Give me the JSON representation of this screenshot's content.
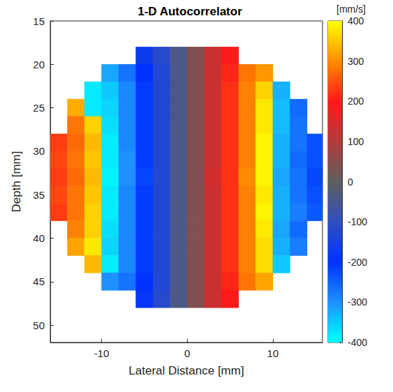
{
  "chart_data": {
    "type": "heatmap",
    "title": "1-D Autocorrelator",
    "x_label": "Lateral Distance [mm]",
    "y_label": "Depth [mm]",
    "xlim": [
      -16,
      15.8
    ],
    "ylim": [
      15,
      52
    ],
    "xticks": [
      -10,
      0,
      10
    ],
    "yticks": [
      15,
      20,
      25,
      30,
      35,
      40,
      45,
      50
    ],
    "cells": {
      "x": [
        -15,
        -13,
        -11,
        -9,
        -7,
        -5,
        -3,
        -1,
        1,
        3,
        5,
        7,
        9,
        11,
        13,
        15
      ],
      "y": [
        19,
        21,
        23,
        25,
        27,
        29,
        31,
        33,
        35,
        37,
        39,
        41,
        43,
        45,
        47
      ],
      "values": [
        [
          null,
          null,
          null,
          null,
          null,
          -170,
          -120,
          -40,
          40,
          130,
          200,
          null,
          null,
          null,
          null,
          null
        ],
        [
          null,
          null,
          null,
          -320,
          -270,
          -200,
          -130,
          -40,
          40,
          130,
          210,
          280,
          310,
          null,
          null,
          null
        ],
        [
          null,
          null,
          -380,
          -350,
          -290,
          -210,
          -130,
          -40,
          40,
          130,
          220,
          290,
          360,
          -330,
          null,
          null
        ],
        [
          null,
          330,
          -380,
          -360,
          -290,
          -210,
          -130,
          -40,
          40,
          130,
          220,
          290,
          380,
          -340,
          -260,
          null
        ],
        [
          null,
          280,
          360,
          -370,
          -290,
          -210,
          -130,
          -40,
          40,
          130,
          220,
          290,
          380,
          -340,
          -270,
          null
        ],
        [
          230,
          270,
          340,
          -380,
          -290,
          -210,
          -130,
          -40,
          40,
          130,
          220,
          290,
          390,
          -330,
          -270,
          -230
        ],
        [
          240,
          280,
          350,
          -380,
          -300,
          -210,
          -130,
          -40,
          40,
          130,
          220,
          290,
          390,
          -330,
          -260,
          -230
        ],
        [
          230,
          270,
          340,
          -390,
          -300,
          -220,
          -130,
          -40,
          40,
          140,
          220,
          300,
          390,
          -320,
          -270,
          -220
        ],
        [
          240,
          280,
          350,
          -380,
          -290,
          -210,
          -130,
          -40,
          40,
          130,
          220,
          290,
          380,
          -330,
          -270,
          -230
        ],
        [
          230,
          280,
          360,
          -380,
          -290,
          -210,
          -130,
          -40,
          40,
          130,
          220,
          290,
          390,
          -330,
          -280,
          -240
        ],
        [
          null,
          290,
          360,
          -370,
          -290,
          -210,
          -130,
          -40,
          40,
          130,
          220,
          290,
          380,
          -320,
          -260,
          null
        ],
        [
          null,
          320,
          380,
          -360,
          -290,
          -210,
          -130,
          -40,
          40,
          130,
          220,
          290,
          370,
          -330,
          -280,
          null
        ],
        [
          null,
          null,
          340,
          -380,
          -290,
          -210,
          -130,
          -40,
          40,
          130,
          220,
          290,
          370,
          -350,
          null,
          null
        ],
        [
          null,
          null,
          null,
          -300,
          -270,
          -200,
          -130,
          -40,
          40,
          130,
          210,
          280,
          320,
          null,
          null,
          null
        ],
        [
          null,
          null,
          null,
          null,
          null,
          -190,
          -120,
          -40,
          40,
          130,
          200,
          null,
          null,
          null,
          null,
          null
        ]
      ]
    },
    "colorbar": {
      "label": "[mm/s]",
      "lim": [
        -400,
        400
      ],
      "ticks": [
        -400,
        -300,
        -200,
        -100,
        0,
        100,
        200,
        300,
        400
      ]
    }
  }
}
